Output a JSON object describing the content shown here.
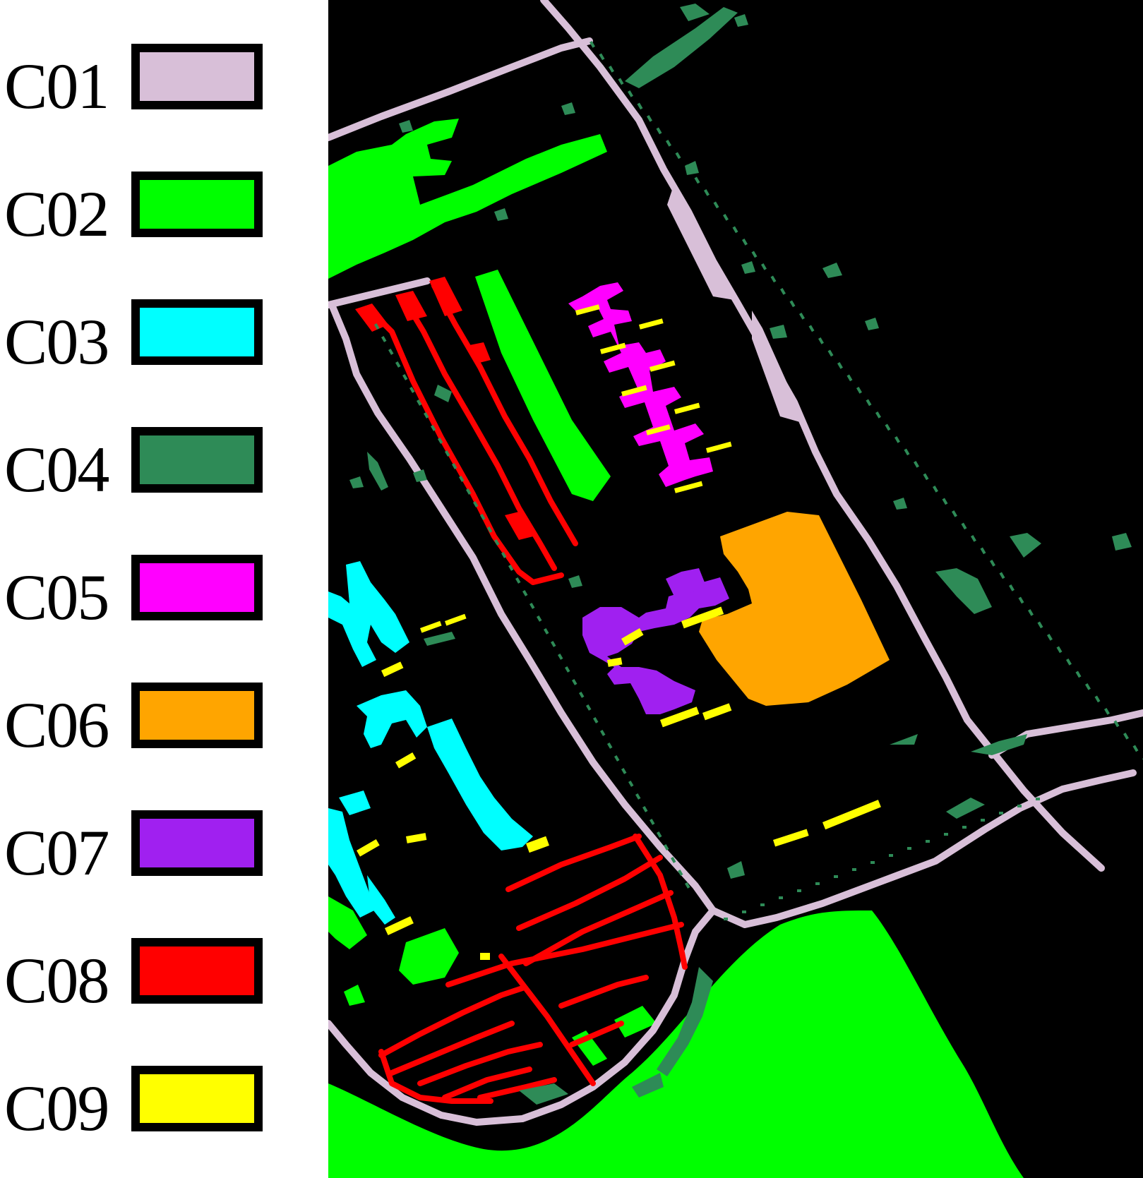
{
  "legend": {
    "items": [
      {
        "label": "C01",
        "color": "#d8bfd8"
      },
      {
        "label": "C02",
        "color": "#00ff00"
      },
      {
        "label": "C03",
        "color": "#00ffff"
      },
      {
        "label": "C04",
        "color": "#2e8b57"
      },
      {
        "label": "C05",
        "color": "#ff00ff"
      },
      {
        "label": "C06",
        "color": "#ffa500"
      },
      {
        "label": "C07",
        "color": "#a020f0"
      },
      {
        "label": "C08",
        "color": "#ff0000"
      },
      {
        "label": "C09",
        "color": "#ffff00"
      }
    ]
  },
  "map": {
    "background_color": "#000000"
  }
}
